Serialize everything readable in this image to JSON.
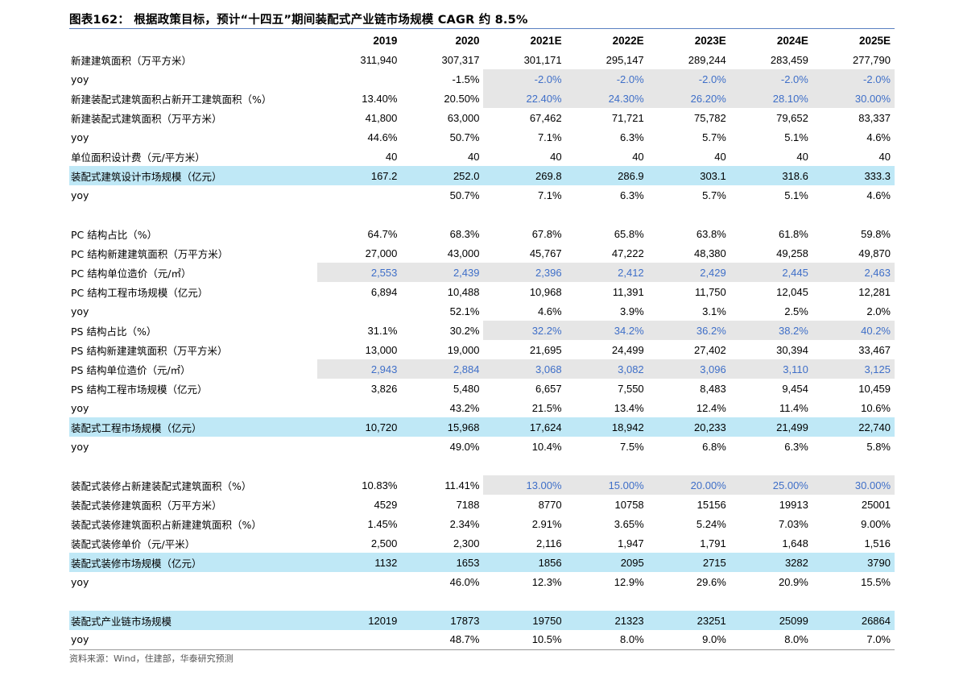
{
  "title": "图表162：  根据政策目标，预计“十四五”期间装配式产业链市场规模 CAGR 约 8.5%",
  "source": "资料来源：Wind，住建部，华泰研究预测",
  "colors": {
    "highlight_row": "#bfe8f6",
    "estimate_cell_bg": "#e6e6e6",
    "estimate_text": "#3f6fc8",
    "title_rule": "#5a7fc1"
  },
  "columns": [
    "2019",
    "2020",
    "2021E",
    "2022E",
    "2023E",
    "2024E",
    "2025E"
  ],
  "rows": [
    {
      "label": "新建建筑面积（万平方米）",
      "values": [
        "311,940",
        "307,317",
        "301,171",
        "295,147",
        "289,244",
        "283,459",
        "277,790"
      ],
      "hl": false,
      "gray_from": -1
    },
    {
      "label": "yoy",
      "values": [
        "",
        "-1.5%",
        "-2.0%",
        "-2.0%",
        "-2.0%",
        "-2.0%",
        "-2.0%"
      ],
      "hl": false,
      "gray_from": 2
    },
    {
      "label": "新建装配式建筑面积占新开工建筑面积（%）",
      "values": [
        "13.40%",
        "20.50%",
        "22.40%",
        "24.30%",
        "26.20%",
        "28.10%",
        "30.00%"
      ],
      "hl": false,
      "gray_from": 2
    },
    {
      "label": "新建装配式建筑面积（万平方米）",
      "values": [
        "41,800",
        "63,000",
        "67,462",
        "71,721",
        "75,782",
        "79,652",
        "83,337"
      ],
      "hl": false,
      "gray_from": -1
    },
    {
      "label": "yoy",
      "values": [
        "44.6%",
        "50.7%",
        "7.1%",
        "6.3%",
        "5.7%",
        "5.1%",
        "4.6%"
      ],
      "hl": false,
      "gray_from": -1
    },
    {
      "label": "单位面积设计费（元/平方米）",
      "values": [
        "40",
        "40",
        "40",
        "40",
        "40",
        "40",
        "40"
      ],
      "hl": false,
      "gray_from": -1
    },
    {
      "label": "装配式建筑设计市场规模（亿元）",
      "values": [
        "167.2",
        "252.0",
        "269.8",
        "286.9",
        "303.1",
        "318.6",
        "333.3"
      ],
      "hl": true,
      "gray_from": -1
    },
    {
      "label": "yoy",
      "values": [
        "",
        "50.7%",
        "7.1%",
        "6.3%",
        "5.7%",
        "5.1%",
        "4.6%"
      ],
      "hl": false,
      "gray_from": -1
    },
    {
      "label": "",
      "values": [
        "",
        "",
        "",
        "",
        "",
        "",
        ""
      ],
      "hl": false,
      "gray_from": -1,
      "blank": true
    },
    {
      "label": "PC 结构占比（%）",
      "values": [
        "64.7%",
        "68.3%",
        "67.8%",
        "65.8%",
        "63.8%",
        "61.8%",
        "59.8%"
      ],
      "hl": false,
      "gray_from": -1
    },
    {
      "label": "PC 结构新建建筑面积（万平方米）",
      "values": [
        "27,000",
        "43,000",
        "45,767",
        "47,222",
        "48,380",
        "49,258",
        "49,870"
      ],
      "hl": false,
      "gray_from": -1
    },
    {
      "label": "PC 结构单位造价（元/㎡）",
      "values": [
        "2,553",
        "2,439",
        "2,396",
        "2,412",
        "2,429",
        "2,445",
        "2,463"
      ],
      "hl": false,
      "gray_from": 0
    },
    {
      "label": "PC 结构工程市场规模（亿元）",
      "values": [
        "6,894",
        "10,488",
        "10,968",
        "11,391",
        "11,750",
        "12,045",
        "12,281"
      ],
      "hl": false,
      "gray_from": -1
    },
    {
      "label": "yoy",
      "values": [
        "",
        "52.1%",
        "4.6%",
        "3.9%",
        "3.1%",
        "2.5%",
        "2.0%"
      ],
      "hl": false,
      "gray_from": -1
    },
    {
      "label": "PS 结构占比（%）",
      "values": [
        "31.1%",
        "30.2%",
        "32.2%",
        "34.2%",
        "36.2%",
        "38.2%",
        "40.2%"
      ],
      "hl": false,
      "gray_from": 2
    },
    {
      "label": "PS 结构新建建筑面积（万平方米）",
      "values": [
        "13,000",
        "19,000",
        "21,695",
        "24,499",
        "27,402",
        "30,394",
        "33,467"
      ],
      "hl": false,
      "gray_from": -1
    },
    {
      "label": "PS 结构单位造价（元/㎡）",
      "values": [
        "2,943",
        "2,884",
        "3,068",
        "3,082",
        "3,096",
        "3,110",
        "3,125"
      ],
      "hl": false,
      "gray_from": 0
    },
    {
      "label": "PS 结构工程市场规模（亿元）",
      "values": [
        "3,826",
        "5,480",
        "6,657",
        "7,550",
        "8,483",
        "9,454",
        "10,459"
      ],
      "hl": false,
      "gray_from": -1
    },
    {
      "label": "yoy",
      "values": [
        "",
        "43.2%",
        "21.5%",
        "13.4%",
        "12.4%",
        "11.4%",
        "10.6%"
      ],
      "hl": false,
      "gray_from": -1
    },
    {
      "label": "装配式工程市场规模（亿元）",
      "values": [
        "10,720",
        "15,968",
        "17,624",
        "18,942",
        "20,233",
        "21,499",
        "22,740"
      ],
      "hl": true,
      "gray_from": -1
    },
    {
      "label": "yoy",
      "values": [
        "",
        "49.0%",
        "10.4%",
        "7.5%",
        "6.8%",
        "6.3%",
        "5.8%"
      ],
      "hl": false,
      "gray_from": -1
    },
    {
      "label": "",
      "values": [
        "",
        "",
        "",
        "",
        "",
        "",
        ""
      ],
      "hl": false,
      "gray_from": -1,
      "blank": true
    },
    {
      "label": "装配式装修占新建装配式建筑面积（%）",
      "values": [
        "10.83%",
        "11.41%",
        "13.00%",
        "15.00%",
        "20.00%",
        "25.00%",
        "30.00%"
      ],
      "hl": false,
      "gray_from": 2
    },
    {
      "label": "装配式装修建筑面积（万平方米）",
      "values": [
        "4529",
        "7188",
        "8770",
        "10758",
        "15156",
        "19913",
        "25001"
      ],
      "hl": false,
      "gray_from": -1
    },
    {
      "label": "装配式装修建筑面积占新建建筑面积（%）",
      "values": [
        "1.45%",
        "2.34%",
        "2.91%",
        "3.65%",
        "5.24%",
        "7.03%",
        "9.00%"
      ],
      "hl": false,
      "gray_from": -1
    },
    {
      "label": "装配式装修单价（元/平米）",
      "values": [
        "2,500",
        "2,300",
        "2,116",
        "1,947",
        "1,791",
        "1,648",
        "1,516"
      ],
      "hl": false,
      "gray_from": -1
    },
    {
      "label": "装配式装修市场规模（亿元）",
      "values": [
        "1132",
        "1653",
        "1856",
        "2095",
        "2715",
        "3282",
        "3790"
      ],
      "hl": true,
      "gray_from": -1
    },
    {
      "label": "yoy",
      "values": [
        "",
        "46.0%",
        "12.3%",
        "12.9%",
        "29.6%",
        "20.9%",
        "15.5%"
      ],
      "hl": false,
      "gray_from": -1
    },
    {
      "label": "",
      "values": [
        "",
        "",
        "",
        "",
        "",
        "",
        ""
      ],
      "hl": false,
      "gray_from": -1,
      "blank": true
    },
    {
      "label": "装配式产业链市场规模",
      "values": [
        "12019",
        "17873",
        "19750",
        "21323",
        "23251",
        "25099",
        "26864"
      ],
      "hl": true,
      "gray_from": -1
    },
    {
      "label": "yoy",
      "values": [
        "",
        "48.7%",
        "10.5%",
        "8.0%",
        "9.0%",
        "8.0%",
        "7.0%"
      ],
      "hl": false,
      "gray_from": -1,
      "last": true
    }
  ]
}
